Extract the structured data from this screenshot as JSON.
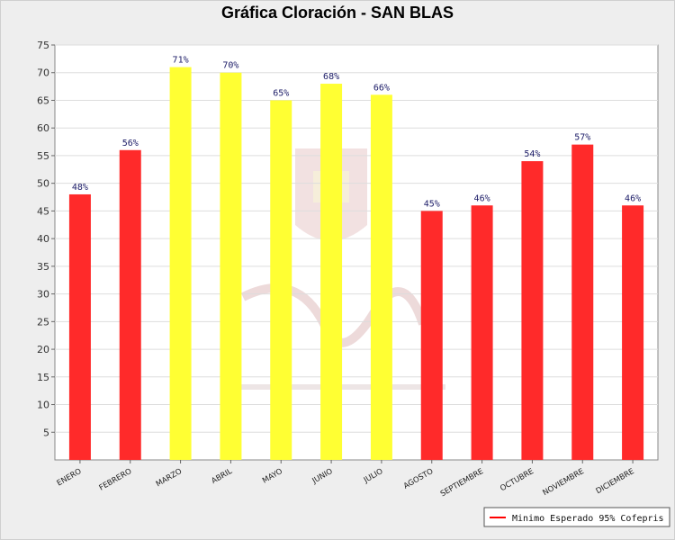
{
  "chart_data": {
    "type": "bar",
    "title": "Gráfica Cloración - SAN BLAS",
    "categories": [
      "ENERO",
      "FEBRERO",
      "MARZO",
      "ABRIL",
      "MAYO",
      "JUNIO",
      "JULIO",
      "AGOSTO",
      "SEPTIEMBRE",
      "OCTUBRE",
      "NOVIEMBRE",
      "DICIEMBRE"
    ],
    "values": [
      48,
      56,
      71,
      70,
      65,
      68,
      66,
      45,
      46,
      54,
      57,
      46
    ],
    "value_labels": [
      "48%",
      "56%",
      "71%",
      "70%",
      "65%",
      "68%",
      "66%",
      "45%",
      "46%",
      "54%",
      "57%",
      "46%"
    ],
    "bar_colors": [
      "#ff2a2a",
      "#ff2a2a",
      "#ffff33",
      "#ffff33",
      "#ffff33",
      "#ffff33",
      "#ffff33",
      "#ff2a2a",
      "#ff2a2a",
      "#ff2a2a",
      "#ff2a2a",
      "#ff2a2a"
    ],
    "yticks": [
      5,
      10,
      15,
      20,
      25,
      30,
      35,
      40,
      45,
      50,
      55,
      60,
      65,
      70,
      75
    ],
    "ylim": [
      0,
      75
    ],
    "xlabel": "",
    "ylabel": "",
    "grid": true,
    "legend": {
      "position": "bottom-right",
      "entries": [
        {
          "label": "Minimo Esperado 95% Cofepris",
          "color": "#ff0000",
          "marker": "line"
        }
      ]
    }
  }
}
